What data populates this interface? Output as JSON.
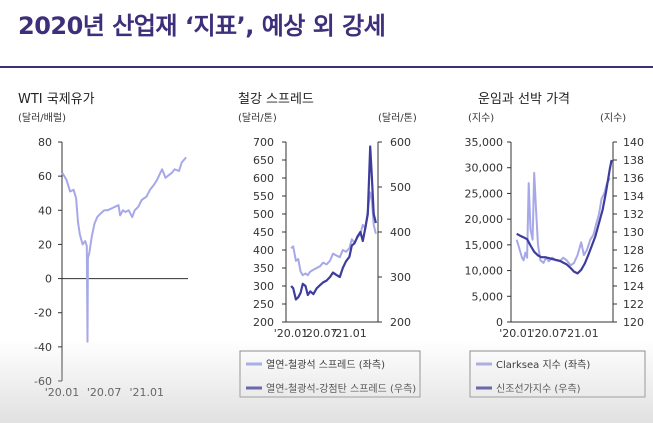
{
  "page": {
    "title": "2020년 산업재 ‘지표’, 예상 외 강세"
  },
  "colors": {
    "title": "#3d2f7a",
    "light_series": "#a6a8e8",
    "dark_series": "#3e3c9c",
    "axis": "#333333"
  },
  "chart_data": [
    {
      "type": "line",
      "title": "WTI 국제유가",
      "ylabel": "(달러/배럴)",
      "ylim": [
        -60,
        80
      ],
      "yticks": [
        "80",
        "60",
        "40",
        "20",
        "0",
        "-20",
        "-40",
        "-60"
      ],
      "xticks": [
        "'20.01",
        "'20.07",
        "'21.01"
      ],
      "x_range": [
        "2020-01",
        "2021-06"
      ],
      "series": [
        {
          "axis": "left",
          "color": "#a6a8e8",
          "x": [
            "2020-01-02",
            "2020-01-20",
            "2020-02-05",
            "2020-02-20",
            "2020-03-02",
            "2020-03-10",
            "2020-03-18",
            "2020-03-30",
            "2020-04-10",
            "2020-04-17",
            "2020-04-20",
            "2020-04-22",
            "2020-04-28",
            "2020-05-08",
            "2020-05-20",
            "2020-06-01",
            "2020-06-15",
            "2020-07-01",
            "2020-07-15",
            "2020-08-01",
            "2020-08-15",
            "2020-09-01",
            "2020-09-08",
            "2020-09-20",
            "2020-10-01",
            "2020-10-15",
            "2020-10-30",
            "2020-11-10",
            "2020-11-25",
            "2020-12-10",
            "2020-12-31",
            "2021-01-15",
            "2021-02-01",
            "2021-02-15",
            "2021-03-01",
            "2021-03-08",
            "2021-03-23",
            "2021-04-01",
            "2021-04-20",
            "2021-05-01",
            "2021-05-20",
            "2021-06-01",
            "2021-06-20"
          ],
          "y": [
            62,
            58,
            51,
            52,
            47,
            33,
            26,
            20,
            22,
            19,
            -37,
            12,
            15,
            24,
            32,
            36,
            38,
            40,
            40,
            41,
            42,
            43,
            37,
            40,
            39,
            40,
            36,
            40,
            42,
            46,
            48,
            52,
            55,
            58,
            62,
            64,
            59,
            60,
            62,
            64,
            63,
            68,
            71
          ]
        }
      ]
    },
    {
      "type": "line",
      "title": "철강 스프레드",
      "ylabel": "(달러/톤)",
      "y2label": "(달러/톤)",
      "ylim": [
        200,
        700
      ],
      "y2lim": [
        200,
        600
      ],
      "yticks": [
        "700",
        "650",
        "600",
        "550",
        "500",
        "450",
        "400",
        "350",
        "300",
        "250",
        "200"
      ],
      "y2ticks": [
        "600",
        "500",
        "400",
        "300",
        "200"
      ],
      "xticks": [
        "'20.01",
        "'20.07",
        "'21.01"
      ],
      "x_range": [
        "2019-12",
        "2021-06"
      ],
      "series": [
        {
          "name": "열연-철광석 스프레드 (좌측)",
          "axis": "left",
          "color": "#a6a8e8",
          "x": [
            "2020-01-02",
            "2020-01-15",
            "2020-02-01",
            "2020-02-15",
            "2020-03-01",
            "2020-03-15",
            "2020-04-01",
            "2020-04-15",
            "2020-05-01",
            "2020-05-20",
            "2020-06-10",
            "2020-07-01",
            "2020-07-20",
            "2020-08-10",
            "2020-09-01",
            "2020-09-20",
            "2020-10-10",
            "2020-11-01",
            "2020-11-20",
            "2020-12-10",
            "2020-12-31",
            "2021-01-15",
            "2021-02-01",
            "2021-02-20",
            "2021-03-10",
            "2021-03-25",
            "2021-04-10",
            "2021-04-25",
            "2021-05-10",
            "2021-05-20",
            "2021-06-01",
            "2021-06-15"
          ],
          "y": [
            405,
            410,
            370,
            375,
            340,
            330,
            335,
            330,
            340,
            345,
            350,
            355,
            365,
            360,
            370,
            390,
            385,
            380,
            400,
            395,
            405,
            430,
            420,
            435,
            445,
            470,
            460,
            510,
            560,
            540,
            470,
            445
          ]
        },
        {
          "name": "열연-철광석-강점탄 스프레드 (우측)",
          "axis": "right",
          "color": "#3e3c9c",
          "x": [
            "2020-01-02",
            "2020-01-15",
            "2020-02-01",
            "2020-02-15",
            "2020-03-01",
            "2020-03-15",
            "2020-04-01",
            "2020-04-15",
            "2020-05-01",
            "2020-05-20",
            "2020-06-10",
            "2020-07-01",
            "2020-07-20",
            "2020-08-10",
            "2020-09-01",
            "2020-09-20",
            "2020-10-10",
            "2020-11-01",
            "2020-11-20",
            "2020-12-10",
            "2020-12-31",
            "2021-01-15",
            "2021-02-01",
            "2021-02-20",
            "2021-03-10",
            "2021-03-25",
            "2021-04-10",
            "2021-04-25",
            "2021-05-10",
            "2021-05-20",
            "2021-06-01",
            "2021-06-15"
          ],
          "y": [
            280,
            275,
            250,
            255,
            265,
            285,
            280,
            260,
            268,
            262,
            275,
            282,
            288,
            292,
            300,
            310,
            305,
            300,
            320,
            335,
            345,
            370,
            375,
            390,
            400,
            380,
            410,
            440,
            590,
            525,
            440,
            420
          ]
        }
      ],
      "legend": [
        "열연-철광석 스프레드 (좌측)",
        "열연-철광석-강점탄 스프레드 (우측)"
      ]
    },
    {
      "type": "line",
      "title": "운임과 선박 가격",
      "ylabel": "(지수)",
      "y2label": "(지수)",
      "ylim": [
        0,
        35000
      ],
      "y2lim": [
        120,
        140
      ],
      "yticks": [
        "35,000",
        "30,000",
        "25,000",
        "20,000",
        "15,000",
        "10,000",
        "5,000",
        "0"
      ],
      "y2ticks": [
        "140",
        "138",
        "136",
        "134",
        "132",
        "130",
        "128",
        "126",
        "124",
        "122",
        "120"
      ],
      "xticks": [
        "'20.01",
        "'20.07",
        "'21.01"
      ],
      "x_range": [
        "2019-12",
        "2021-06"
      ],
      "series": [
        {
          "name": "Clarksea 지수 (좌측)",
          "axis": "left",
          "color": "#a6a8e8",
          "x": [
            "2020-01-02",
            "2020-01-15",
            "2020-02-01",
            "2020-02-10",
            "2020-02-20",
            "2020-03-01",
            "2020-03-10",
            "2020-03-20",
            "2020-04-01",
            "2020-04-10",
            "2020-04-20",
            "2020-05-01",
            "2020-05-15",
            "2020-06-01",
            "2020-06-15",
            "2020-07-01",
            "2020-07-20",
            "2020-08-10",
            "2020-09-01",
            "2020-09-20",
            "2020-10-10",
            "2020-11-01",
            "2020-11-20",
            "2020-12-10",
            "2020-12-31",
            "2021-01-15",
            "2021-02-01",
            "2021-02-20",
            "2021-03-10",
            "2021-03-25",
            "2021-04-10",
            "2021-04-25",
            "2021-05-10",
            "2021-05-25",
            "2021-06-10"
          ],
          "y": [
            16000,
            14500,
            12500,
            12000,
            13500,
            12500,
            27000,
            18000,
            16000,
            29000,
            22000,
            15000,
            12000,
            11500,
            12500,
            11800,
            12500,
            12000,
            11800,
            12500,
            12000,
            11000,
            11500,
            13000,
            15500,
            13000,
            14000,
            16000,
            17000,
            19000,
            21000,
            24000,
            25000,
            27000,
            28000
          ]
        },
        {
          "name": "신조선가지수 (우측)",
          "axis": "right",
          "color": "#3e3c9c",
          "x": [
            "2020-01-02",
            "2020-01-20",
            "2020-02-10",
            "2020-03-01",
            "2020-03-20",
            "2020-04-10",
            "2020-05-01",
            "2020-05-20",
            "2020-06-10",
            "2020-07-01",
            "2020-07-20",
            "2020-08-10",
            "2020-09-01",
            "2020-09-20",
            "2020-10-10",
            "2020-11-01",
            "2020-11-20",
            "2020-12-10",
            "2020-12-31",
            "2021-01-20",
            "2021-02-10",
            "2021-03-01",
            "2021-03-20",
            "2021-04-10",
            "2021-05-01",
            "2021-05-20",
            "2021-06-10",
            "2021-06-20"
          ],
          "y": [
            129.8,
            129.6,
            129.4,
            129.2,
            128.5,
            127.8,
            127.4,
            127.2,
            127.2,
            127.1,
            127.0,
            126.9,
            126.8,
            126.6,
            126.4,
            126.0,
            125.6,
            125.4,
            125.8,
            126.5,
            127.5,
            128.5,
            129.5,
            131.0,
            132.5,
            134.5,
            137.0,
            138.0
          ]
        }
      ],
      "legend": [
        "Clarksea 지수 (좌측)",
        "신조선가지수 (우측)"
      ]
    }
  ]
}
